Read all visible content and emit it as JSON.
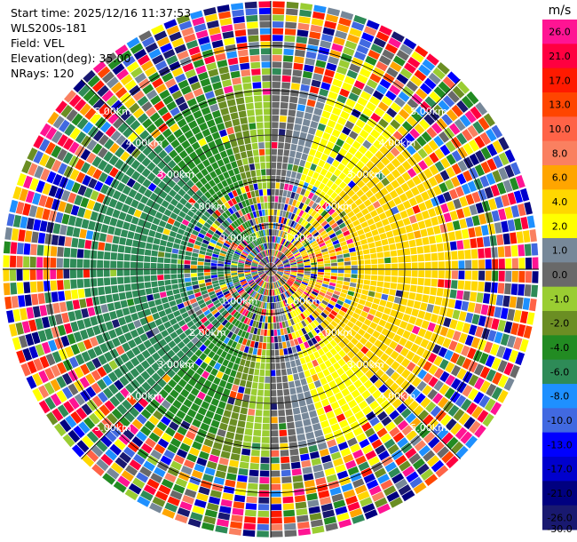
{
  "header": {
    "start_time": "Start time: 2025/12/16 11:37:53",
    "instrument": "WLS200s-181",
    "field": "Field: VEL",
    "elevation": "Elevation(deg): 35.00",
    "nrays": "NRays: 120"
  },
  "chart_data": {
    "type": "heatmap",
    "projection": "polar-ppi",
    "title": "",
    "field": "VEL",
    "elevation_deg": 35.0,
    "n_rays": 120,
    "max_range_km": 6.0,
    "range_ring_labels": [
      "1.00km",
      "2.00km",
      "3.00km",
      "4.00km",
      "5.00km"
    ],
    "colorbar": {
      "unit": "m/s",
      "tick_labels": [
        "26.0",
        "21.0",
        "17.0",
        "13.0",
        "10.0",
        "8.0",
        "6.0",
        "4.0",
        "2.0",
        "1.0",
        "0.0",
        "-1.0",
        "-2.0",
        "-4.0",
        "-6.0",
        "-8.0",
        "-10.0",
        "-13.0",
        "-17.0",
        "-21.0",
        "-26.0",
        "-30.0"
      ],
      "bins": [
        {
          "color": "#ff1493"
        },
        {
          "color": "#ff0040"
        },
        {
          "color": "#ff1a00"
        },
        {
          "color": "#ff4500"
        },
        {
          "color": "#ff6347"
        },
        {
          "color": "#fa8060"
        },
        {
          "color": "#ffa500"
        },
        {
          "color": "#ffd700"
        },
        {
          "color": "#ffff00"
        },
        {
          "color": "#778899"
        },
        {
          "color": "#696969"
        },
        {
          "color": "#9acd32"
        },
        {
          "color": "#6b8e23"
        },
        {
          "color": "#228b22"
        },
        {
          "color": "#2e8b57"
        },
        {
          "color": "#1e90ff"
        },
        {
          "color": "#4169e1"
        },
        {
          "color": "#0000ff"
        },
        {
          "color": "#0000cd"
        },
        {
          "color": "#000080"
        },
        {
          "color": "#191970"
        }
      ]
    }
  }
}
